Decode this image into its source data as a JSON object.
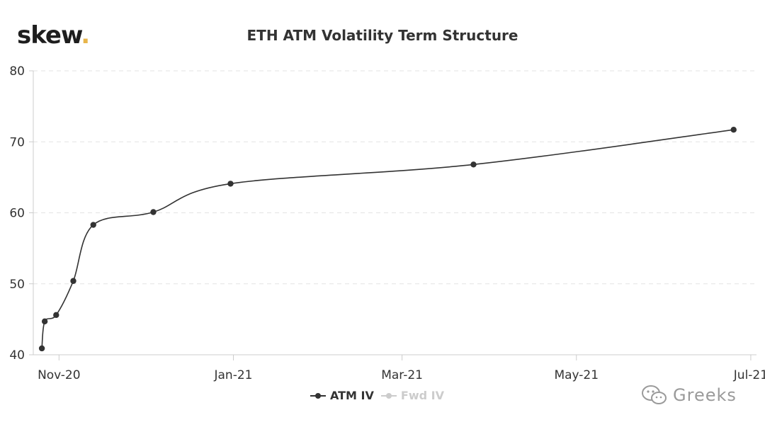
{
  "logo": {
    "text": "skew",
    "dot": ".",
    "dot_color": "#e8b54a"
  },
  "watermark": {
    "text": "Greeks",
    "icon": "wechat-icon"
  },
  "chart_data": {
    "type": "line",
    "title": "ETH ATM Volatility Term Structure",
    "xlabel": "",
    "ylabel": "",
    "x_axis_type": "date",
    "xlim": [
      "2020-10-23",
      "2021-07-03"
    ],
    "ylim": [
      40,
      80
    ],
    "y_ticks": [
      40,
      50,
      60,
      70,
      80
    ],
    "x_ticks": [
      {
        "date": "2020-11-01",
        "label": "Nov-20"
      },
      {
        "date": "2021-01-01",
        "label": "Jan-21"
      },
      {
        "date": "2021-03-01",
        "label": "Mar-21"
      },
      {
        "date": "2021-05-01",
        "label": "May-21"
      },
      {
        "date": "2021-07-01",
        "label": "Jul-21"
      }
    ],
    "grid": {
      "horizontal": true,
      "style": "dashed"
    },
    "legend_position": "bottom-center",
    "series": [
      {
        "name": "ATM IV",
        "visible": true,
        "color": "#333333",
        "points": [
          {
            "x": "2020-10-26",
            "y": 40.9
          },
          {
            "x": "2020-10-27",
            "y": 44.7
          },
          {
            "x": "2020-10-31",
            "y": 45.6
          },
          {
            "x": "2020-11-06",
            "y": 50.4
          },
          {
            "x": "2020-11-13",
            "y": 58.3
          },
          {
            "x": "2020-12-04",
            "y": 60.1
          },
          {
            "x": "2020-12-31",
            "y": 64.1
          },
          {
            "x": "2021-03-26",
            "y": 66.8
          },
          {
            "x": "2021-06-25",
            "y": 71.7
          }
        ]
      },
      {
        "name": "Fwd IV",
        "visible": false,
        "color": "#cccccc",
        "points": []
      }
    ]
  }
}
